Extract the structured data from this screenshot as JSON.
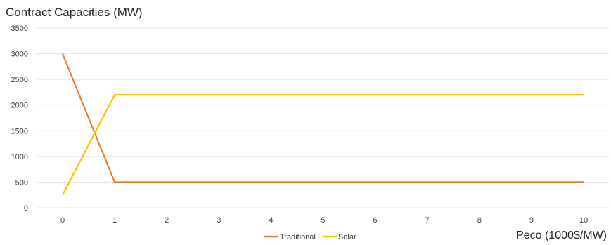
{
  "chart_data": {
    "type": "line",
    "title": "Contract Capacities (MW)",
    "xlabel": "Peco (1000$/MW)",
    "ylabel": "",
    "x": [
      0,
      1,
      2,
      3,
      4,
      5,
      6,
      7,
      8,
      9,
      10
    ],
    "ylim": [
      0,
      3500
    ],
    "y_ticks": [
      0,
      500,
      1000,
      1500,
      2000,
      2500,
      3000,
      3500
    ],
    "grid": true,
    "legend_position": "bottom",
    "series": [
      {
        "name": "Traditional",
        "color": "#ED7D31",
        "values": [
          3000,
          500,
          500,
          500,
          500,
          500,
          500,
          500,
          500,
          500,
          500
        ]
      },
      {
        "name": "Solar",
        "color": "#FFC000",
        "values": [
          250,
          2200,
          2200,
          2200,
          2200,
          2200,
          2200,
          2200,
          2200,
          2200,
          2200
        ]
      }
    ]
  }
}
